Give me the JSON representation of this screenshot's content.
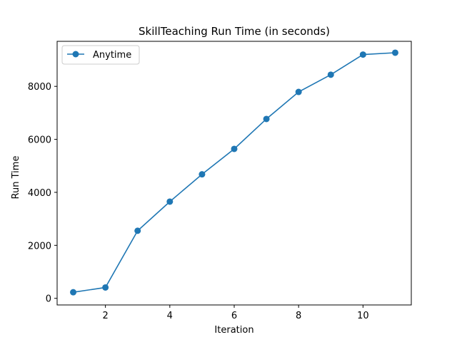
{
  "chart_data": {
    "type": "line",
    "title": "SkillTeaching Run Time (in seconds)",
    "xlabel": "Iteration",
    "ylabel": "Run Time",
    "xlim": [
      0.5,
      11.5
    ],
    "ylim": [
      -250,
      9700
    ],
    "xticks": [
      2,
      4,
      6,
      8,
      10
    ],
    "yticks": [
      0,
      2000,
      4000,
      6000,
      8000
    ],
    "grid": false,
    "legend_position": "top-left",
    "series": [
      {
        "name": "Anytime",
        "color": "#1f77b4",
        "marker": "circle",
        "x": [
          1,
          2,
          3,
          4,
          5,
          6,
          7,
          8,
          9,
          10,
          11
        ],
        "values": [
          230,
          410,
          2550,
          3650,
          4680,
          5640,
          6770,
          7790,
          8440,
          9200,
          9270
        ]
      }
    ]
  }
}
